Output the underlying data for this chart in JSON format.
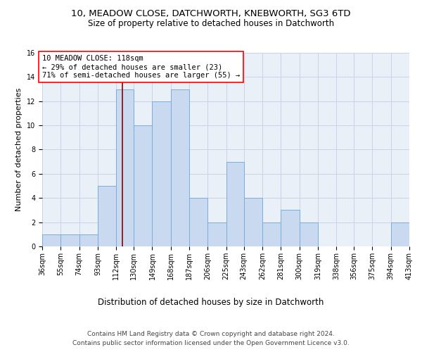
{
  "title1": "10, MEADOW CLOSE, DATCHWORTH, KNEBWORTH, SG3 6TD",
  "title2": "Size of property relative to detached houses in Datchworth",
  "xlabel": "Distribution of detached houses by size in Datchworth",
  "ylabel": "Number of detached properties",
  "bin_edges": [
    36,
    55,
    74,
    93,
    112,
    130,
    149,
    168,
    187,
    206,
    225,
    243,
    262,
    281,
    300,
    319,
    338,
    356,
    375,
    394,
    413
  ],
  "bin_counts": [
    1,
    1,
    1,
    5,
    13,
    10,
    12,
    13,
    4,
    2,
    7,
    4,
    2,
    3,
    2,
    0,
    0,
    0,
    0,
    2
  ],
  "bar_color": "#c9d9f0",
  "bar_edge_color": "#7aadda",
  "property_size": 118,
  "vline_color": "#8b0000",
  "annotation_text": "10 MEADOW CLOSE: 118sqm\n← 29% of detached houses are smaller (23)\n71% of semi-detached houses are larger (55) →",
  "annotation_box_color": "white",
  "annotation_box_edge": "red",
  "ylim": [
    0,
    16
  ],
  "yticks": [
    0,
    2,
    4,
    6,
    8,
    10,
    12,
    14,
    16
  ],
  "grid_color": "#c8d4e8",
  "bg_color": "#eaf0f8",
  "footnote1": "Contains HM Land Registry data © Crown copyright and database right 2024.",
  "footnote2": "Contains public sector information licensed under the Open Government Licence v3.0.",
  "title_fontsize": 9.5,
  "subtitle_fontsize": 8.5,
  "annotation_fontsize": 7.5,
  "ylabel_fontsize": 8,
  "xlabel_fontsize": 8.5,
  "tick_fontsize": 7,
  "footnote_fontsize": 6.5
}
